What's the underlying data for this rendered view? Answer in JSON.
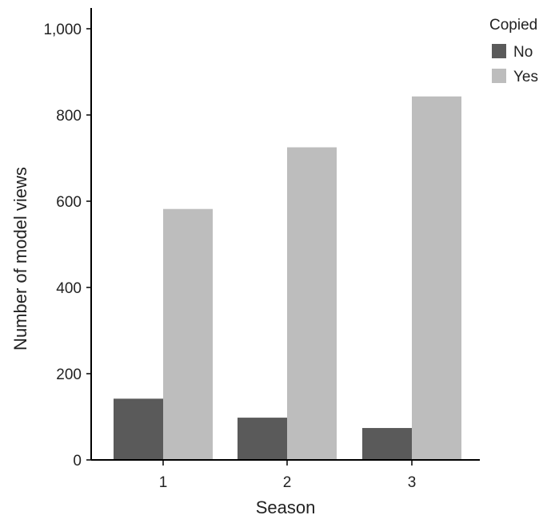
{
  "chart_data": {
    "type": "bar",
    "categories": [
      "1",
      "2",
      "3"
    ],
    "series": [
      {
        "name": "No",
        "values": [
          142,
          98,
          74
        ],
        "color": "#5a5a5a"
      },
      {
        "name": "Yes",
        "values": [
          582,
          725,
          843
        ],
        "color": "#bdbdbd"
      }
    ],
    "xlabel": "Season",
    "ylabel": "Number of model views",
    "ylim": [
      0,
      1000
    ],
    "yticks": [
      0,
      200,
      400,
      600,
      800,
      1000
    ],
    "ytick_labels": [
      "0",
      "200",
      "400",
      "600",
      "800",
      "1,000"
    ],
    "legend": {
      "title": "Copied",
      "placement": "top-right"
    },
    "grid": false
  }
}
